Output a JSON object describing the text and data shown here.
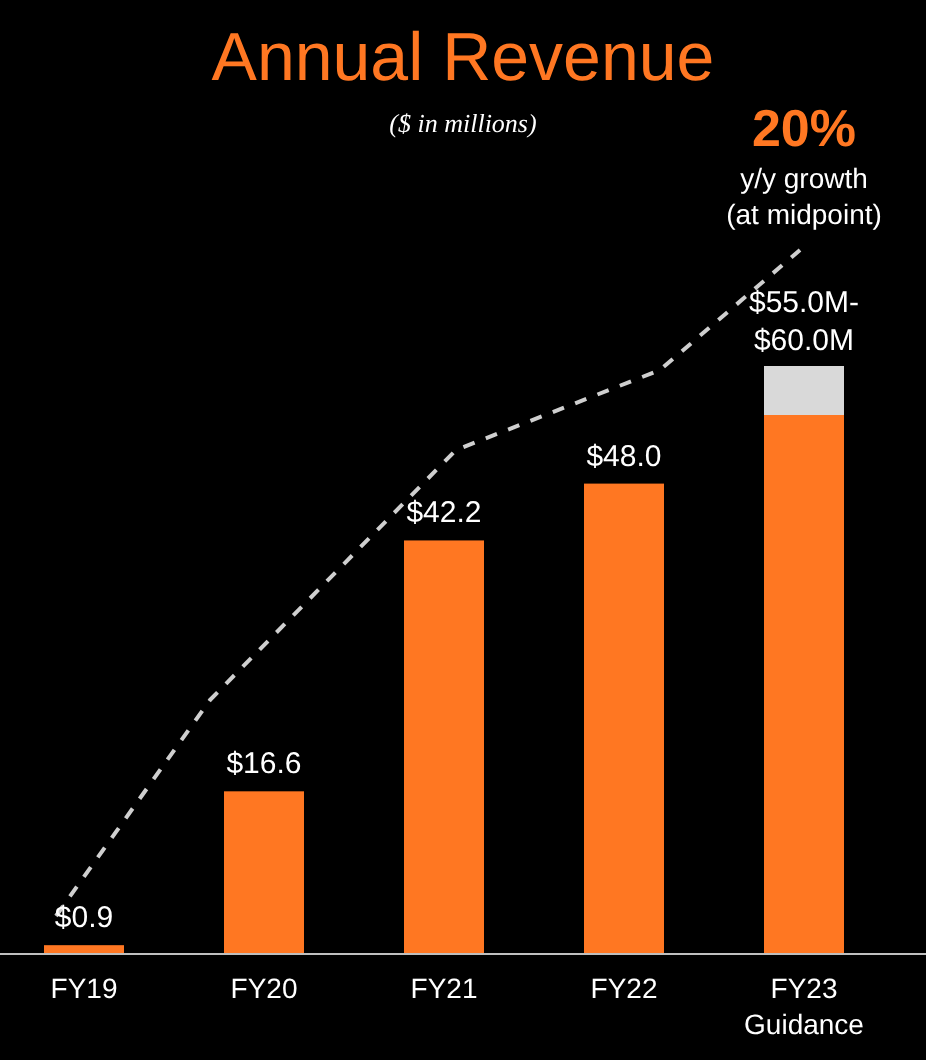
{
  "chart_data": {
    "type": "bar",
    "title": "Annual Revenue",
    "subtitle": "($ in millions)",
    "categories": [
      "FY19",
      "FY20",
      "FY21",
      "FY22",
      "FY23 Guidance"
    ],
    "stacked": true,
    "ylim": [
      0,
      60
    ],
    "tick_labels": "x",
    "series": [
      {
        "color": "#ff7722",
        "values": [
          0.9,
          16.6,
          42.2,
          48.0,
          55.0
        ],
        "value_labels": [
          "$0.9",
          "$16.6",
          "$42.2",
          "$48.0",
          null
        ]
      },
      {
        "color": "#d9d9d9",
        "values": [
          null,
          null,
          null,
          null,
          5.0
        ]
      }
    ],
    "totals": [
      null,
      null,
      null,
      null,
      "$55.0M- $60.0M"
    ],
    "annotations": [
      "20%",
      "y/y growth",
      "(at midpoint)"
    ]
  }
}
